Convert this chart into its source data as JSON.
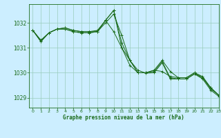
{
  "title": "Graphe pression niveau de la mer (hPa)",
  "background_color": "#cceeff",
  "grid_color": "#99ccbb",
  "line_color": "#1a6b1a",
  "marker_color": "#1a6b1a",
  "xlim": [
    -0.5,
    23
  ],
  "ylim": [
    1028.6,
    1032.75
  ],
  "yticks": [
    1029,
    1030,
    1031,
    1032
  ],
  "xticks": [
    0,
    1,
    2,
    3,
    4,
    5,
    6,
    7,
    8,
    9,
    10,
    11,
    12,
    13,
    14,
    15,
    16,
    17,
    18,
    19,
    20,
    21,
    22,
    23
  ],
  "series": [
    [
      1031.7,
      1031.3,
      1031.6,
      1031.75,
      1031.8,
      1031.7,
      1031.65,
      1031.65,
      1031.7,
      1032.1,
      1031.65,
      1031.0,
      1030.5,
      1030.0,
      1030.0,
      1030.1,
      1030.05,
      1029.85,
      1029.8,
      1029.8,
      1030.0,
      1029.8,
      1029.4,
      1029.1
    ],
    [
      1031.7,
      1031.3,
      1031.6,
      1031.75,
      1031.8,
      1031.7,
      1031.65,
      1031.65,
      1031.65,
      1032.0,
      1032.35,
      1031.5,
      1030.5,
      1030.0,
      1030.0,
      1030.1,
      1030.5,
      1030.05,
      1029.8,
      1029.8,
      1030.0,
      1029.85,
      1029.4,
      1029.1
    ],
    [
      1031.7,
      1031.25,
      1031.6,
      1031.75,
      1031.75,
      1031.65,
      1031.6,
      1031.6,
      1031.65,
      1032.1,
      1032.5,
      1031.0,
      1030.3,
      1030.0,
      1030.0,
      1030.05,
      1030.45,
      1029.8,
      1029.75,
      1029.75,
      1029.95,
      1029.8,
      1029.35,
      1029.1
    ],
    [
      1031.7,
      1031.25,
      1031.6,
      1031.75,
      1031.75,
      1031.65,
      1031.6,
      1031.6,
      1031.65,
      1032.1,
      1032.5,
      1031.2,
      1030.5,
      1030.1,
      1029.98,
      1030.0,
      1030.4,
      1029.75,
      1029.75,
      1029.75,
      1029.95,
      1029.75,
      1029.3,
      1029.05
    ]
  ]
}
